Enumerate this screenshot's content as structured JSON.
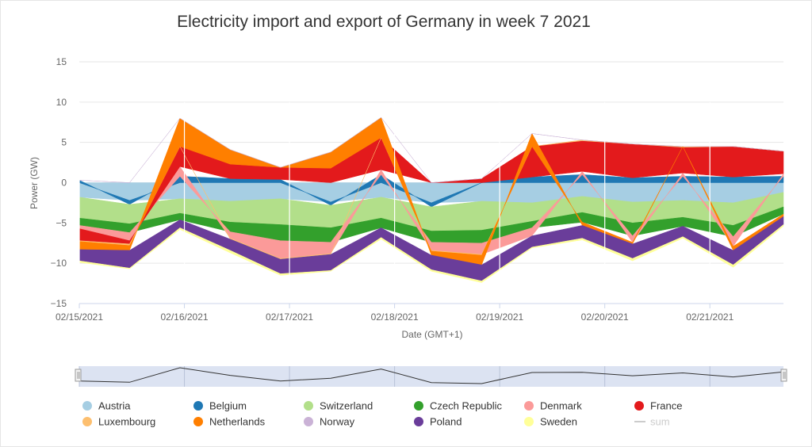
{
  "chart_data": {
    "type": "area",
    "title": "Electricity import and export of Germany in week 7 2021",
    "xlabel": "Date (GMT+1)",
    "ylabel": "Power (GW)",
    "ylim": [
      -15,
      15
    ],
    "yticks": [
      "15",
      "10",
      "5",
      "0",
      "−5",
      "−10",
      "−15"
    ],
    "yticks_values": [
      15,
      10,
      5,
      0,
      -5,
      -10,
      -15
    ],
    "xticks": [
      "02/15/2021",
      "02/16/2021",
      "02/17/2021",
      "02/18/2021",
      "02/19/2021",
      "02/20/2021",
      "02/21/2021"
    ],
    "x": [
      "02/15 00h",
      "02/15 12h",
      "02/16 00h",
      "02/16 12h",
      "02/17 00h",
      "02/17 12h",
      "02/18 00h",
      "02/18 12h",
      "02/19 00h",
      "02/19 12h",
      "02/20 00h",
      "02/20 12h",
      "02/21 00h",
      "02/21 12h",
      "02/21 23h"
    ],
    "grid": true,
    "legend_position": "bottom",
    "stacking": "normal",
    "series": [
      {
        "name": "Austria",
        "color": "#a6cee3",
        "values": [
          -1.8,
          -2.2,
          -2.0,
          -2.3,
          -2.0,
          -2.4,
          -1.8,
          -2.5,
          -2.3,
          -2.5,
          -1.7,
          -2.4,
          -2.2,
          -2.5,
          -1.2
        ]
      },
      {
        "name": "Belgium",
        "color": "#1f78b4",
        "values": [
          0.3,
          -0.5,
          0.8,
          0.5,
          0.4,
          -0.4,
          1.0,
          -0.5,
          0.0,
          0.7,
          1.0,
          0.6,
          0.8,
          0.7,
          0.8
        ]
      },
      {
        "name": "Switzerland",
        "color": "#b2df8a",
        "values": [
          -2.6,
          -2.4,
          -1.8,
          -2.6,
          -3.2,
          -2.8,
          -2.6,
          -3.0,
          -3.6,
          -2.3,
          -2.0,
          -2.6,
          -2.1,
          -2.8,
          -1.8
        ]
      },
      {
        "name": "Czech Republic",
        "color": "#33a02c",
        "values": [
          -0.9,
          -1.1,
          -0.8,
          -1.2,
          -2.0,
          -1.8,
          -1.2,
          -1.4,
          -1.6,
          -0.8,
          -1.2,
          -1.6,
          -1.1,
          -1.4,
          -0.9
        ]
      },
      {
        "name": "Denmark",
        "color": "#fb9a99",
        "values": [
          -0.4,
          -1.0,
          1.2,
          -0.8,
          -2.2,
          -1.4,
          0.6,
          -1.0,
          -1.4,
          -1.0,
          0.4,
          -0.8,
          0.4,
          -1.2,
          0.3
        ]
      },
      {
        "name": "France",
        "color": "#e31a1c",
        "values": [
          -1.5,
          -0.4,
          2.5,
          1.8,
          1.5,
          1.8,
          4.0,
          0.0,
          0.5,
          3.8,
          3.8,
          4.2,
          3.2,
          3.8,
          2.8
        ]
      },
      {
        "name": "Luxembourg",
        "color": "#fdbf6f",
        "values": [
          -0.1,
          -0.2,
          0.0,
          -0.1,
          -0.1,
          -0.1,
          0.0,
          -0.1,
          -0.1,
          0.0,
          0.1,
          0.0,
          0.1,
          0.0,
          0.0
        ]
      },
      {
        "name": "Netherlands",
        "color": "#ff7f00",
        "values": [
          -1.0,
          -0.6,
          3.5,
          1.8,
          0.0,
          2.0,
          2.5,
          -0.5,
          -1.2,
          1.6,
          -0.4,
          -0.2,
          0.0,
          -0.5,
          -0.3
        ]
      },
      {
        "name": "Norway",
        "color": "#cab2d6",
        "values": [
          0.0,
          0.0,
          0.0,
          0.0,
          0.0,
          0.0,
          0.0,
          0.0,
          0.0,
          0.0,
          0.0,
          0.0,
          0.0,
          0.0,
          0.0
        ]
      },
      {
        "name": "Poland",
        "color": "#6a3d9a",
        "values": [
          -1.4,
          -2.2,
          -1.0,
          -1.4,
          -1.8,
          -2.0,
          -1.2,
          -1.8,
          -2.0,
          -1.4,
          -1.6,
          -1.8,
          -1.3,
          -1.8,
          -1.0
        ]
      },
      {
        "name": "Sweden",
        "color": "#ffff99",
        "values": [
          -0.2,
          -0.1,
          -0.2,
          -0.3,
          -0.2,
          -0.1,
          -0.2,
          -0.2,
          -0.2,
          -0.1,
          -0.2,
          -0.3,
          -0.2,
          -0.3,
          -0.2
        ]
      }
    ],
    "sum": {
      "name": "sum",
      "color": "#cccccc",
      "visible": false
    }
  },
  "navigator": {
    "color": "#dce3f2",
    "line_color": "#333333"
  }
}
